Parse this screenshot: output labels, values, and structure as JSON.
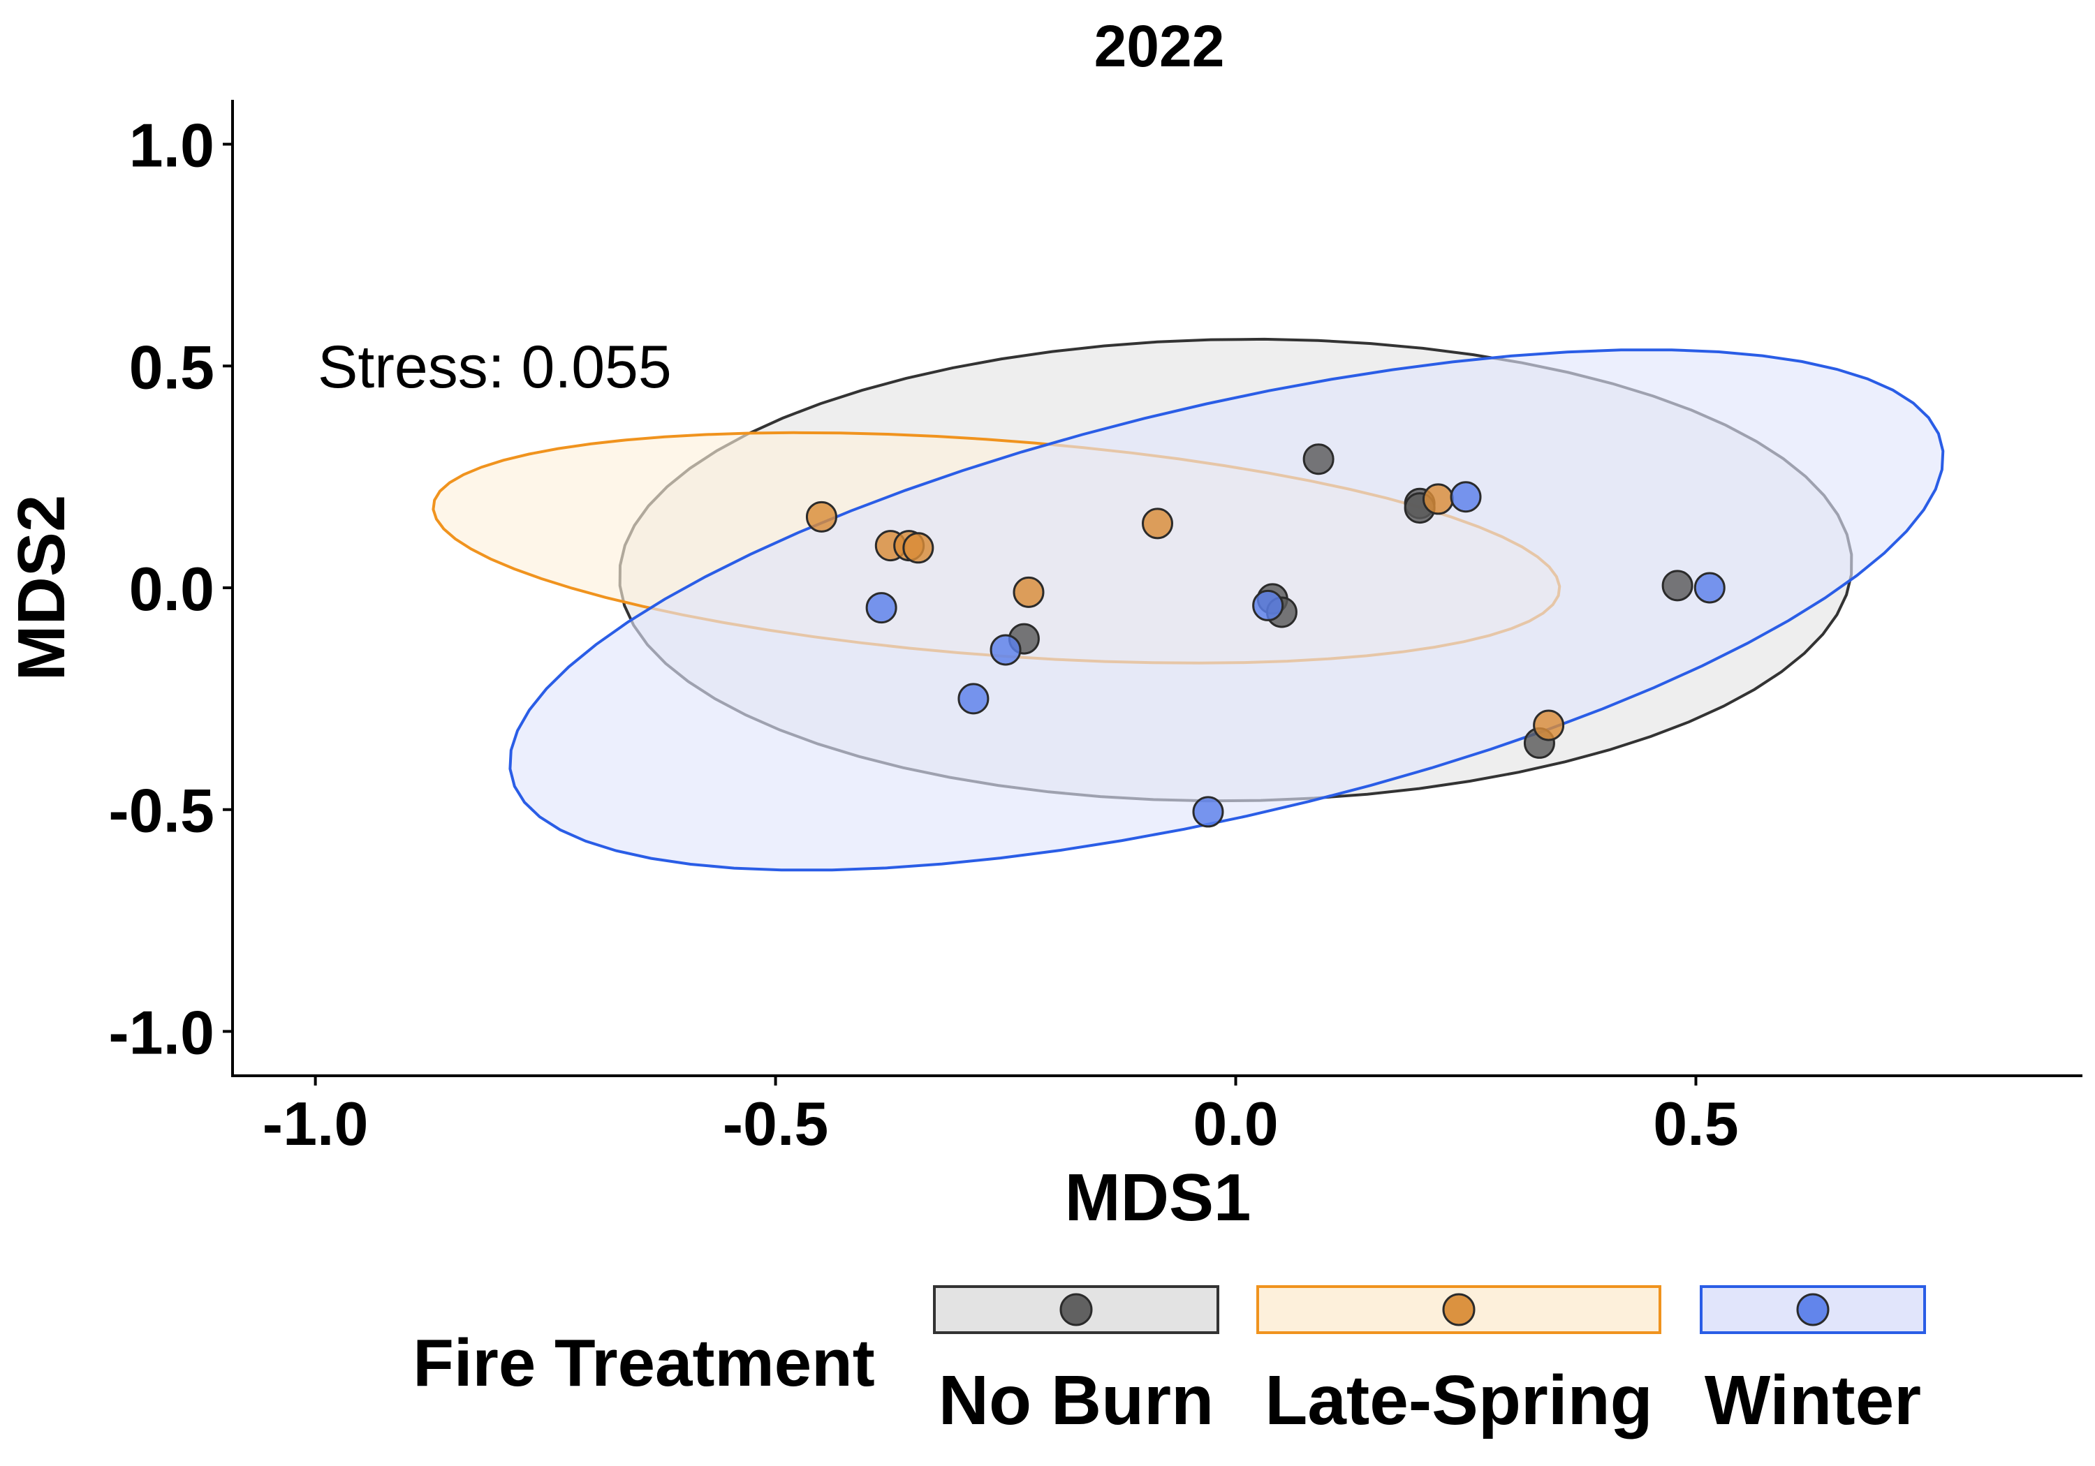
{
  "chart_data": {
    "type": "scatter",
    "title": "2022",
    "xlabel": "MDS1",
    "ylabel": "MDS2",
    "xlim": [
      -1.09,
      0.92
    ],
    "ylim": [
      -1.1,
      1.1
    ],
    "xticks": [
      -1.0,
      -0.5,
      0.0,
      0.5
    ],
    "xtick_labels": [
      "-1.0",
      "-0.5",
      "0.0",
      "0.5"
    ],
    "yticks": [
      -1.0,
      -0.5,
      0.0,
      0.5,
      1.0
    ],
    "ytick_labels": [
      "-1.0",
      "-0.5",
      "0.0",
      "0.5",
      "1.0"
    ],
    "grid": false,
    "annotation": {
      "text": "Stress: 0.055",
      "x": -1.0,
      "y": 0.5
    },
    "legend": {
      "title": "Fire Treatment",
      "position": "bottom",
      "items": [
        "No Burn",
        "Late-Spring",
        "Winter"
      ]
    },
    "series": [
      {
        "name": "No Burn",
        "color": "#333333",
        "fill": "#5a5a5a",
        "ellipse_fill": "#e3e3e3",
        "ellipse": {
          "cx": 0.0,
          "cy": 0.04,
          "rx": 0.67,
          "ry": 0.52,
          "angle": 3
        },
        "points": [
          {
            "x": 0.09,
            "y": 0.29
          },
          {
            "x": 0.2,
            "y": 0.19
          },
          {
            "x": 0.2,
            "y": 0.18
          },
          {
            "x": 0.48,
            "y": 0.005
          },
          {
            "x": 0.04,
            "y": -0.025
          },
          {
            "x": 0.05,
            "y": -0.055
          },
          {
            "x": -0.23,
            "y": -0.115
          },
          {
            "x": 0.33,
            "y": -0.35
          }
        ]
      },
      {
        "name": "Late-Spring",
        "color": "#f0931e",
        "fill": "#d98c38",
        "ellipse_fill": "#fdf0db",
        "ellipse": {
          "cx": -0.26,
          "cy": 0.09,
          "rx": 0.62,
          "ry": 0.24,
          "angle": -10
        },
        "points": [
          {
            "x": -0.45,
            "y": 0.16
          },
          {
            "x": -0.375,
            "y": 0.095
          },
          {
            "x": -0.355,
            "y": 0.095
          },
          {
            "x": -0.345,
            "y": 0.09
          },
          {
            "x": -0.085,
            "y": 0.145
          },
          {
            "x": -0.225,
            "y": -0.01
          },
          {
            "x": 0.22,
            "y": 0.2
          },
          {
            "x": 0.34,
            "y": -0.31
          }
        ]
      },
      {
        "name": "Winter",
        "color": "#2a5de6",
        "fill": "#5b80ea",
        "ellipse_fill": "#e1e5fb",
        "ellipse": {
          "cx": -0.01,
          "cy": -0.05,
          "rx": 0.88,
          "ry": 0.42,
          "angle": 32
        },
        "points": [
          {
            "x": 0.25,
            "y": 0.205
          },
          {
            "x": 0.515,
            "y": 0.0
          },
          {
            "x": -0.385,
            "y": -0.045
          },
          {
            "x": -0.25,
            "y": -0.14
          },
          {
            "x": -0.285,
            "y": -0.25
          },
          {
            "x": -0.03,
            "y": -0.505
          },
          {
            "x": 0.035,
            "y": -0.04
          }
        ]
      }
    ]
  }
}
